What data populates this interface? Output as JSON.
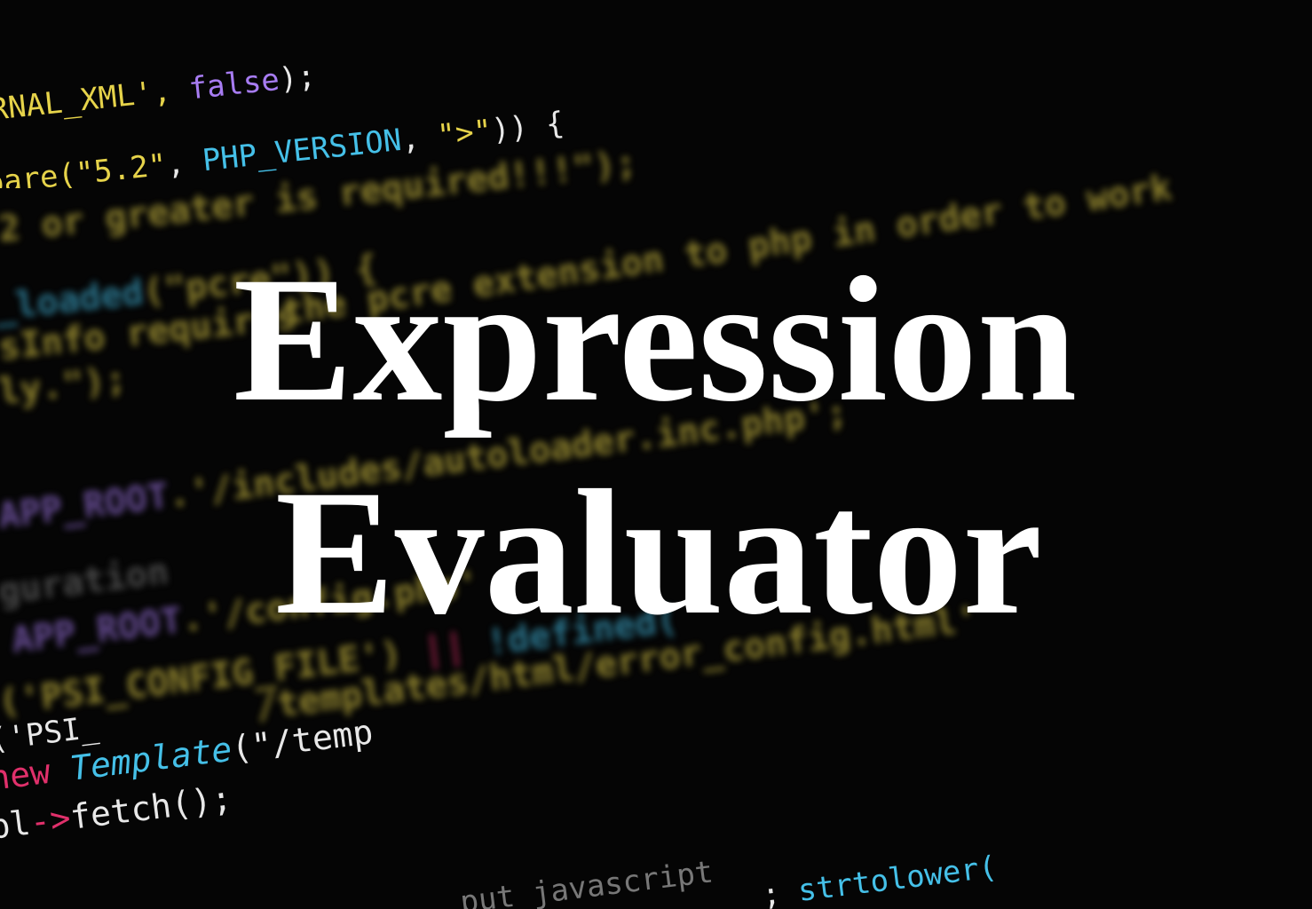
{
  "title": {
    "line1": "Expression",
    "line2": "Evaluator"
  },
  "code_lines": [
    [
      "RNAL_XML', ",
      "false",
      ");"
    ],
    [
      "pare(",
      "\"5.2\"",
      ", ",
      "PHP_VERSION",
      ", ",
      "\">\"",
      ")) {"
    ],
    [
      "2 or greater is required!!!\");"
    ],
    [
      "_loaded",
      "(\"pcre\")) {"
    ],
    [
      "the pcre extension to php in order to work"
    ],
    [
      "sInfo requires"
    ],
    [
      "ly.\");"
    ],
    [
      "APP_ROOT",
      ".'/includes/autoloader.inc.php';"
    ],
    [
      "guration"
    ],
    [
      "APP_ROOT",
      ".'/config.php'"
    ],
    [
      "('PSI_CONFIG_FILE')",
      " || ",
      "!defined("
    ],
    [
      "/templates/html/error_config.html'"
    ],
    [
      "('PSI_"
    ],
    [
      "new ",
      "Template",
      "(\"/temp"
    ],
    [
      "pl",
      "->",
      "fetch();"
    ],
    [
      "put javascript"
    ],
    [
      "; ",
      "strtolower("
    ]
  ]
}
